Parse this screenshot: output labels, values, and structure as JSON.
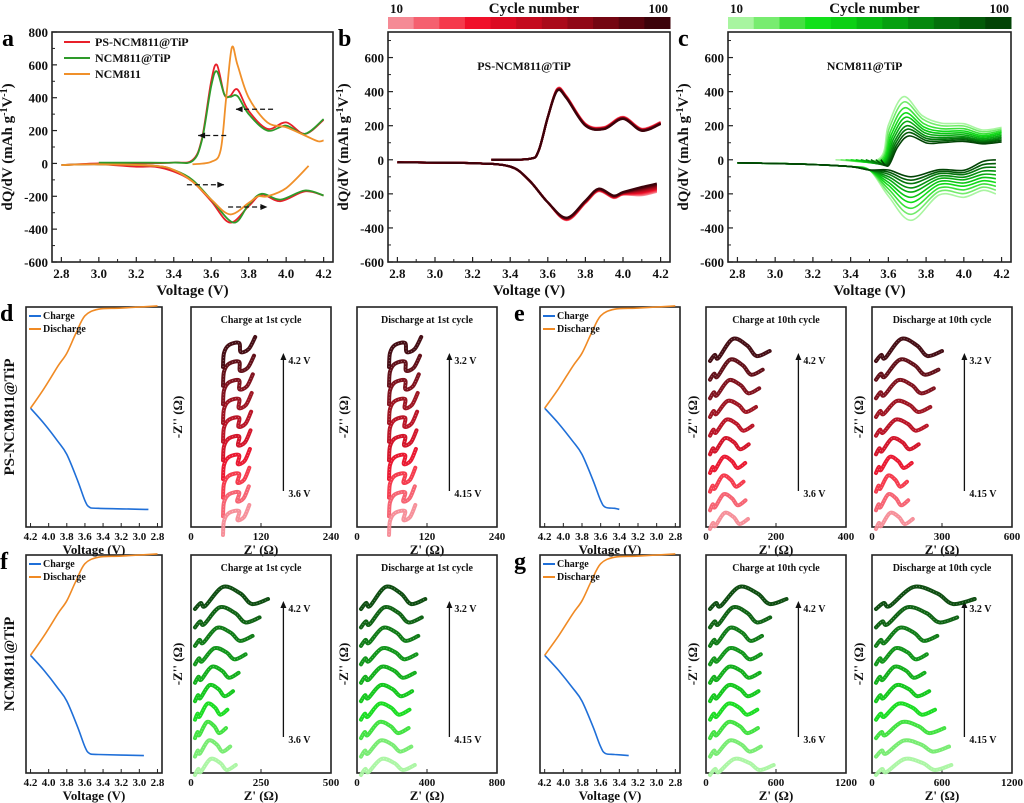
{
  "chart_data": [
    {
      "panel": "a",
      "type": "line",
      "xlabel": "Voltage (V)",
      "ylabel": "dQ/dV (mAh g-1V-1)",
      "xlim": [
        2.75,
        4.25
      ],
      "ylim": [
        -600,
        800
      ],
      "xticks": [
        "2.8",
        "3.0",
        "3.2",
        "3.4",
        "3.6",
        "3.8",
        "4.0",
        "4.2"
      ],
      "yticks": [
        "-600",
        "-400",
        "-200",
        "0",
        "200",
        "400",
        "600",
        "800"
      ],
      "legend": {
        "placement": "top-left"
      },
      "series": [
        {
          "name": "PS-NCM811@TiP",
          "color": "#e8202a",
          "charge": [
            [
              2.8,
              -10
            ],
            [
              3.0,
              0
            ],
            [
              3.2,
              0
            ],
            [
              3.4,
              5
            ],
            [
              3.5,
              20
            ],
            [
              3.55,
              150
            ],
            [
              3.6,
              500
            ],
            [
              3.63,
              600
            ],
            [
              3.67,
              420
            ],
            [
              3.7,
              410
            ],
            [
              3.74,
              450
            ],
            [
              3.8,
              320
            ],
            [
              3.9,
              210
            ],
            [
              4.0,
              250
            ],
            [
              4.1,
              180
            ],
            [
              4.2,
              265
            ]
          ],
          "discharge": [
            [
              4.2,
              -195
            ],
            [
              4.1,
              -170
            ],
            [
              3.97,
              -230
            ],
            [
              3.87,
              -190
            ],
            [
              3.8,
              -260
            ],
            [
              3.7,
              -360
            ],
            [
              3.6,
              -230
            ],
            [
              3.5,
              -110
            ],
            [
              3.4,
              -50
            ],
            [
              3.3,
              -20
            ],
            [
              3.2,
              -20
            ],
            [
              3.0,
              -5
            ],
            [
              2.8,
              -10
            ]
          ]
        },
        {
          "name": "NCM811@TiP",
          "color": "#2e9a2a",
          "charge": [
            [
              3.0,
              5
            ],
            [
              3.2,
              5
            ],
            [
              3.4,
              5
            ],
            [
              3.5,
              15
            ],
            [
              3.55,
              140
            ],
            [
              3.6,
              470
            ],
            [
              3.63,
              560
            ],
            [
              3.67,
              420
            ],
            [
              3.7,
              405
            ],
            [
              3.74,
              410
            ],
            [
              3.8,
              300
            ],
            [
              3.9,
              200
            ],
            [
              4.0,
              230
            ],
            [
              4.1,
              180
            ],
            [
              4.2,
              270
            ]
          ],
          "discharge": [
            [
              4.2,
              -195
            ],
            [
              4.1,
              -165
            ],
            [
              3.97,
              -220
            ],
            [
              3.87,
              -185
            ],
            [
              3.8,
              -250
            ],
            [
              3.72,
              -360
            ],
            [
              3.6,
              -220
            ],
            [
              3.5,
              -100
            ],
            [
              3.4,
              -40
            ],
            [
              3.3,
              -15
            ],
            [
              3.0,
              -5
            ],
            [
              2.8,
              -10
            ]
          ]
        },
        {
          "name": "NCM811",
          "color": "#f0902a",
          "charge": [
            [
              3.5,
              -5
            ],
            [
              3.6,
              10
            ],
            [
              3.65,
              80
            ],
            [
              3.68,
              400
            ],
            [
              3.71,
              705
            ],
            [
              3.74,
              600
            ],
            [
              3.8,
              400
            ],
            [
              3.9,
              250
            ],
            [
              4.0,
              220
            ],
            [
              4.1,
              170
            ],
            [
              4.17,
              135
            ],
            [
              4.2,
              140
            ]
          ],
          "discharge": [
            [
              4.12,
              -15
            ],
            [
              4.0,
              -150
            ],
            [
              3.9,
              -200
            ],
            [
              3.85,
              -200
            ],
            [
              3.8,
              -240
            ],
            [
              3.7,
              -310
            ],
            [
              3.6,
              -220
            ],
            [
              3.5,
              -110
            ],
            [
              3.4,
              -40
            ],
            [
              3.3,
              -15
            ],
            [
              3.0,
              -5
            ],
            [
              2.8,
              -10
            ]
          ]
        }
      ],
      "annotations": [
        "dashed arrow pointing left near 3.75 V (charge peak shift)",
        "dashed arrow pointing left near 3.6 V",
        "dashed arrow pointing right near 3.5 V (discharge)",
        "dashed arrow pointing right near 3.85 V (discharge)"
      ]
    },
    {
      "panel": "b",
      "type": "line",
      "title": "PS-NCM811@TiP",
      "xlabel": "Voltage (V)",
      "ylabel": "dQ/dV (mAh g-1V-1)",
      "xlim": [
        2.75,
        4.25
      ],
      "ylim": [
        -600,
        750
      ],
      "xticks": [
        "2.8",
        "3.0",
        "3.2",
        "3.4",
        "3.6",
        "3.8",
        "4.0",
        "4.2"
      ],
      "yticks": [
        "-600",
        "-400",
        "-200",
        "0",
        "200",
        "400",
        "600"
      ],
      "colorbar": {
        "title": "Cycle number",
        "min_label": "10",
        "max_label": "100",
        "colors": [
          "#f58a95",
          "#f5606f",
          "#f53a4c",
          "#f0102a",
          "#dc0a22",
          "#c40a1e",
          "#aa0a1a",
          "#900816",
          "#740612",
          "#58040e",
          "#3c020a"
        ]
      },
      "cycles": [
        10,
        20,
        30,
        40,
        50,
        60,
        70,
        80,
        90,
        100
      ],
      "charge_profile": [
        [
          3.3,
          0
        ],
        [
          3.5,
          5
        ],
        [
          3.55,
          50
        ],
        [
          3.6,
          250
        ],
        [
          3.65,
          405
        ],
        [
          3.7,
          360
        ],
        [
          3.8,
          200
        ],
        [
          3.9,
          180
        ],
        [
          4.0,
          240
        ],
        [
          4.1,
          170
        ],
        [
          4.2,
          210
        ]
      ],
      "discharge_profile": [
        [
          4.18,
          -140
        ],
        [
          4.1,
          -160
        ],
        [
          4.0,
          -190
        ],
        [
          3.95,
          -210
        ],
        [
          3.87,
          -170
        ],
        [
          3.8,
          -240
        ],
        [
          3.7,
          -340
        ],
        [
          3.6,
          -250
        ],
        [
          3.5,
          -120
        ],
        [
          3.4,
          -40
        ],
        [
          3.2,
          -20
        ],
        [
          2.8,
          -15
        ]
      ],
      "trend": "curves nearly overlap; fade at high-voltage tail"
    },
    {
      "panel": "c",
      "type": "line",
      "title": "NCM811@TiP",
      "xlabel": "Voltage (V)",
      "ylabel": "dQ/dV (mAh g-1V-1)",
      "xlim": [
        2.75,
        4.25
      ],
      "ylim": [
        -600,
        750
      ],
      "xticks": [
        "2.8",
        "3.0",
        "3.2",
        "3.4",
        "3.6",
        "3.8",
        "4.0",
        "4.2"
      ],
      "yticks": [
        "-600",
        "-400",
        "-200",
        "0",
        "200",
        "400",
        "600"
      ],
      "colorbar": {
        "title": "Cycle number",
        "min_label": "10",
        "max_label": "100",
        "colors": [
          "#a8f5a0",
          "#78ec70",
          "#44e040",
          "#12e01a",
          "#0cd014",
          "#08b812",
          "#06a010",
          "#05880e",
          "#04700b",
          "#035a08",
          "#024405"
        ]
      },
      "cycles": [
        10,
        20,
        30,
        40,
        50,
        60,
        70,
        80,
        90,
        100
      ],
      "charge_peak_by_cycle": [
        370,
        340,
        305,
        275,
        250,
        225,
        200,
        180,
        160,
        140
      ],
      "discharge_peak_by_cycle": [
        -355,
        -320,
        -285,
        -250,
        -220,
        -190,
        -165,
        -140,
        -120,
        -100
      ]
    },
    {
      "panel": "d",
      "row_label": "PS-NCM811@TiP",
      "subplots": [
        {
          "type": "line",
          "xlabel": "Voltage (V)",
          "xticks": [
            "4.2",
            "4.0",
            "3.8",
            "3.6",
            "3.4",
            "3.2",
            "3.0",
            "2.8"
          ],
          "xlim": [
            4.25,
            2.75
          ],
          "legend": [
            "Charge",
            "Discharge"
          ],
          "colors": [
            "#1f6fd8",
            "#f08a24"
          ],
          "charge_end_voltage": 2.9,
          "discharge_end_voltage": 2.8
        },
        {
          "type": "scatter",
          "title": "Charge at 1st cycle",
          "xlabel": "Z' (Ω)",
          "ylabel": "-Z'' (Ω)",
          "xticks": [
            "0",
            "120",
            "240"
          ],
          "xlim": [
            0,
            240
          ],
          "arrow_from": "3.6 V",
          "arrow_to": "4.2 V",
          "curve_count": 10,
          "x_end_values": [
            110,
            108,
            106,
            104,
            103,
            102,
            101,
            100,
            99,
            100
          ]
        },
        {
          "type": "scatter",
          "title": "Discharge at 1st cycle",
          "xlabel": "Z' (Ω)",
          "ylabel": "-Z'' (Ω)",
          "xticks": [
            "0",
            "120",
            "240"
          ],
          "xlim": [
            0,
            240
          ],
          "arrow_from": "4.15 V",
          "arrow_to": "3.2 V",
          "curve_count": 10,
          "x_end_values": [
            110,
            108,
            106,
            104,
            103,
            102,
            101,
            100,
            99,
            100
          ]
        }
      ]
    },
    {
      "panel": "e",
      "subplots": [
        {
          "type": "line",
          "xlabel": "Voltage (V)",
          "xticks": [
            "4.2",
            "4.0",
            "3.8",
            "3.6",
            "3.4",
            "3.2",
            "3.0",
            "2.8"
          ],
          "xlim": [
            4.25,
            2.75
          ],
          "legend": [
            "Charge",
            "Discharge"
          ],
          "colors": [
            "#1f6fd8",
            "#f08a24"
          ],
          "charge_end_voltage": 3.4,
          "discharge_end_voltage": 2.8
        },
        {
          "type": "scatter",
          "title": "Charge at 10th cycle",
          "xlabel": "Z' (Ω)",
          "ylabel": "-Z'' (Ω)",
          "xticks": [
            "0",
            "200",
            "400"
          ],
          "xlim": [
            0,
            400
          ],
          "arrow_from": "3.6 V",
          "arrow_to": "4.2 V",
          "curve_count": 10,
          "x_end_values": [
            182,
            162,
            152,
            143,
            133,
            122,
            112,
            107,
            113,
            120
          ]
        },
        {
          "type": "scatter",
          "title": "Discharge at 10th cycle",
          "xlabel": "Z' (Ω)",
          "ylabel": "-Z'' (Ω)",
          "xticks": [
            "0",
            "300",
            "600"
          ],
          "xlim": [
            0,
            600
          ],
          "arrow_from": "4.15 V",
          "arrow_to": "3.2 V",
          "curve_count": 10,
          "x_end_values": [
            300,
            285,
            265,
            250,
            235,
            200,
            170,
            150,
            155,
            175
          ]
        }
      ]
    },
    {
      "panel": "f",
      "row_label": "NCM811@TiP",
      "subplots": [
        {
          "type": "line",
          "xlabel": "Voltage (V)",
          "xticks": [
            "4.2",
            "4.0",
            "3.8",
            "3.6",
            "3.4",
            "3.2",
            "3.0",
            "2.8"
          ],
          "xlim": [
            4.25,
            2.75
          ],
          "legend": [
            "Charge",
            "Discharge"
          ],
          "colors": [
            "#1f6fd8",
            "#f08a24"
          ],
          "charge_end_voltage": 2.95,
          "discharge_end_voltage": 2.8
        },
        {
          "type": "scatter",
          "title": "Charge at 1st cycle",
          "xlabel": "Z' (Ω)",
          "ylabel": "-Z'' (Ω)",
          "xticks": [
            "0",
            "250",
            "500"
          ],
          "xlim": [
            0,
            500
          ],
          "arrow_from": "3.6 V",
          "arrow_to": "4.2 V",
          "curve_count": 10,
          "x_end_values": [
            275,
            245,
            220,
            195,
            170,
            150,
            130,
            125,
            140,
            160
          ]
        },
        {
          "type": "scatter",
          "title": "Discharge at 1st cycle",
          "xlabel": "Z' (Ω)",
          "ylabel": "-Z'' (Ω)",
          "xticks": [
            "0",
            "400",
            "800"
          ],
          "xlim": [
            0,
            800
          ],
          "arrow_from": "4.15 V",
          "arrow_to": "3.2 V",
          "curve_count": 10,
          "x_end_values": [
            390,
            370,
            350,
            340,
            330,
            315,
            300,
            295,
            310,
            330
          ]
        }
      ]
    },
    {
      "panel": "g",
      "subplots": [
        {
          "type": "line",
          "xlabel": "Voltage (V)",
          "xticks": [
            "4.2",
            "4.0",
            "3.8",
            "3.6",
            "3.4",
            "3.2",
            "3.0",
            "2.8"
          ],
          "xlim": [
            4.25,
            2.75
          ],
          "legend": [
            "Charge",
            "Discharge"
          ],
          "colors": [
            "#1f6fd8",
            "#f08a24"
          ],
          "charge_end_voltage": 3.3,
          "discharge_end_voltage": 2.8
        },
        {
          "type": "scatter",
          "title": "Charge at 10th cycle",
          "xlabel": "Z' (Ω)",
          "ylabel": "-Z'' (Ω)",
          "xticks": [
            "0",
            "600",
            "1200"
          ],
          "xlim": [
            0,
            1200
          ],
          "arrow_from": "3.6 V",
          "arrow_to": "4.2 V",
          "curve_count": 10,
          "x_end_values": [
            690,
            550,
            480,
            470,
            460,
            450,
            440,
            445,
            470,
            580
          ]
        },
        {
          "type": "scatter",
          "title": "Discharge at 10th cycle",
          "xlabel": "Z' (Ω)",
          "ylabel": "-Z'' (Ω)",
          "xticks": [
            "0",
            "600",
            "1200"
          ],
          "xlim": [
            0,
            1200
          ],
          "arrow_from": "4.15 V",
          "arrow_to": "3.2 V",
          "curve_count": 10,
          "x_end_values": [
            880,
            730,
            560,
            470,
            450,
            490,
            540,
            620,
            660,
            680
          ]
        }
      ]
    }
  ],
  "labels": {
    "panel_letters": [
      "a",
      "b",
      "c",
      "d",
      "e",
      "f",
      "g"
    ],
    "voltage_axis": "Voltage (V)",
    "dqdv_axis": "dQ/dV (mAh g",
    "dqdv_sup1": "-1",
    "dqdv_mid": "V",
    "dqdv_sup2": "-1",
    "dqdv_close": ")",
    "zreal_axis": "Z' (Ω)",
    "zimag_axis": "-Z'' (Ω)",
    "cycle_number": "Cycle number",
    "cb_min": "10",
    "cb_max": "100",
    "legend_charge": "Charge",
    "legend_discharge": "Discharge",
    "row_d": "PS-NCM811@TiP",
    "row_f": "NCM811@TiP"
  }
}
